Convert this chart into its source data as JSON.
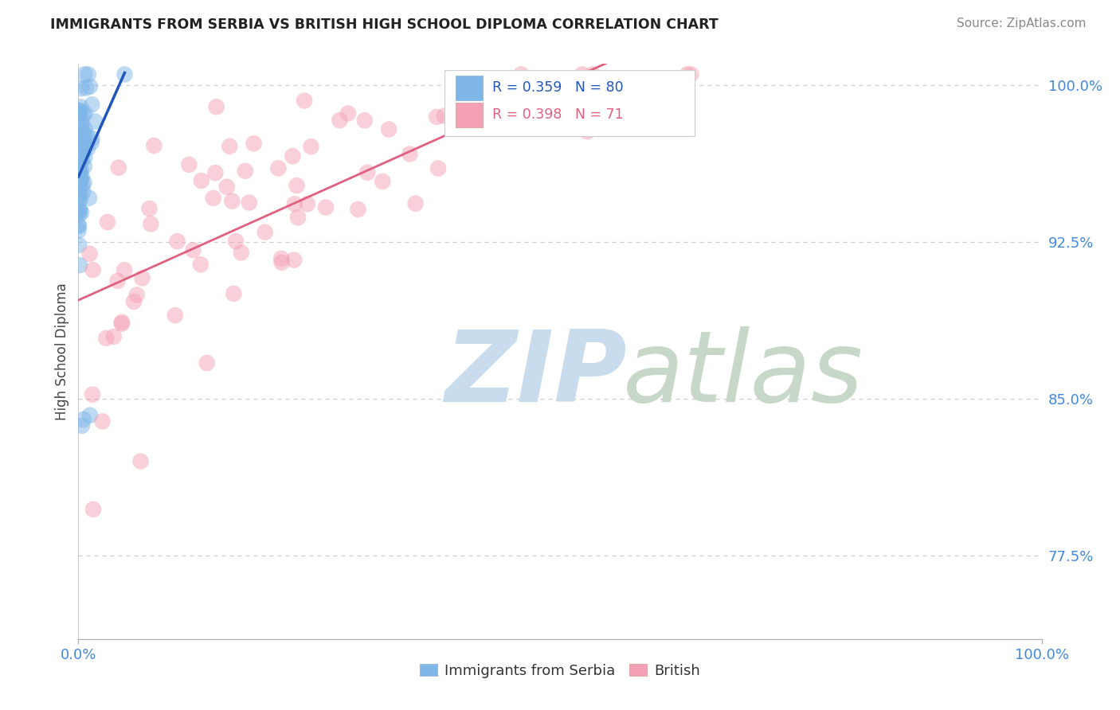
{
  "title": "IMMIGRANTS FROM SERBIA VS BRITISH HIGH SCHOOL DIPLOMA CORRELATION CHART",
  "source": "Source: ZipAtlas.com",
  "ylabel": "High School Diploma",
  "yticks": [
    0.775,
    0.85,
    0.925,
    1.0
  ],
  "ytick_labels": [
    "77.5%",
    "85.0%",
    "92.5%",
    "100.0%"
  ],
  "xlim": [
    0.0,
    1.0
  ],
  "ylim": [
    0.735,
    1.01
  ],
  "serbia_R": 0.359,
  "serbia_N": 80,
  "british_R": 0.398,
  "british_N": 71,
  "serbia_color": "#7EB6E8",
  "british_color": "#F4A0B5",
  "serbia_line_color": "#2255BB",
  "british_line_color": "#E06080",
  "legend_serbia_label": "Immigrants from Serbia",
  "legend_british_label": "British",
  "watermark_zip_color": "#C8DCEE",
  "watermark_atlas_color": "#C8D8C8",
  "background_color": "#FFFFFF",
  "grid_color": "#CCCCCC",
  "tick_color": "#4488DD",
  "title_color": "#222222",
  "source_color": "#888888"
}
